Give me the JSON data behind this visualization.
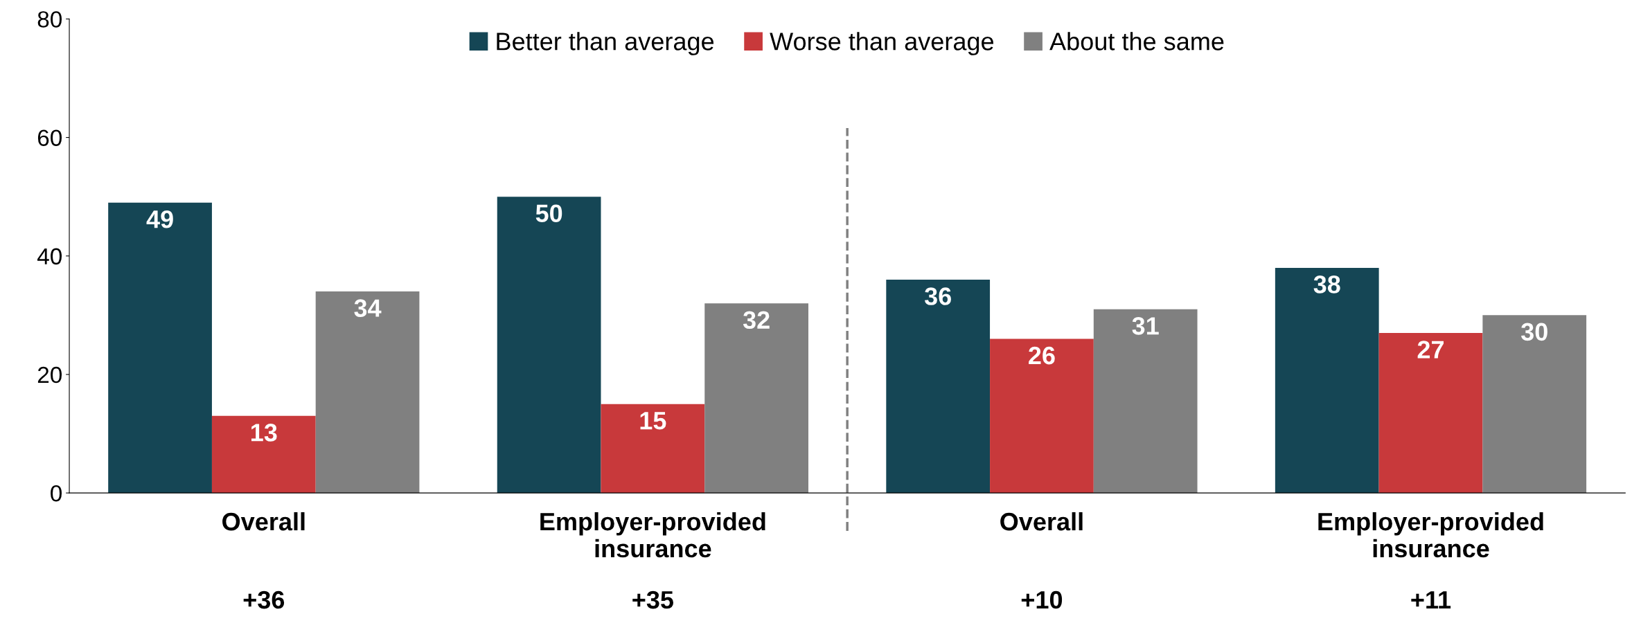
{
  "chart_data": {
    "type": "bar",
    "categories": [
      "Overall",
      "Employer-provided\ninsurance",
      "Overall",
      "Employer-provided\ninsurance"
    ],
    "series": [
      {
        "name": "Better than average",
        "color": "#154655",
        "values": [
          49,
          50,
          36,
          38
        ]
      },
      {
        "name": "Worse than average",
        "color": "#c8393b",
        "values": [
          13,
          15,
          26,
          27
        ]
      },
      {
        "name": "About the same",
        "color": "#808080",
        "values": [
          34,
          32,
          31,
          30
        ]
      }
    ],
    "ylim": [
      0,
      80
    ],
    "yticks": [
      0,
      20,
      40,
      60,
      80
    ],
    "grid": false,
    "legend": "top",
    "data_labels": true,
    "annotations": [
      "+36",
      "+35",
      "+10",
      "+11"
    ]
  }
}
